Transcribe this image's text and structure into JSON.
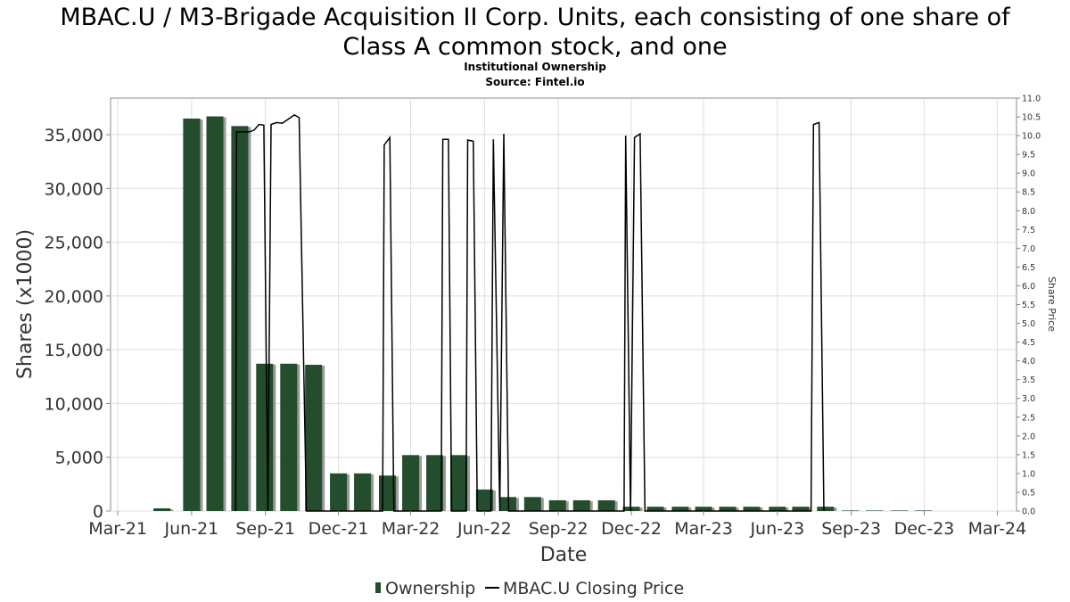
{
  "title_line1": "MBAC.U / M3-Brigade Acquisition II Corp. Units, each consisting of one share of",
  "title_line2": "Class A common stock, and one",
  "subtitle": "Institutional Ownership",
  "source": "Source: Fintel.io",
  "chart_data": {
    "type": "bar",
    "xlabel": "Date",
    "ylabel": "Shares (x1000)",
    "y2label": "Share Price",
    "ylim": [
      0,
      38400
    ],
    "y2lim": [
      0,
      11.0
    ],
    "yticks": [
      "0",
      "5,000",
      "10,000",
      "15,000",
      "20,000",
      "25,000",
      "30,000",
      "35,000"
    ],
    "y2ticks": [
      "0.0",
      "0.5",
      "1.0",
      "1.5",
      "2.0",
      "2.5",
      "3.0",
      "3.5",
      "4.0",
      "4.5",
      "5.0",
      "5.5",
      "6.0",
      "6.5",
      "7.0",
      "7.5",
      "8.0",
      "8.5",
      "9.0",
      "9.5",
      "10.0",
      "10.5",
      "11.0"
    ],
    "xticks": [
      "Mar-21",
      "Jun-21",
      "Sep-21",
      "Dec-21",
      "Mar-22",
      "Jun-22",
      "Sep-22",
      "Dec-22",
      "Mar-23",
      "Jun-23",
      "Sep-23",
      "Dec-23",
      "Mar-24"
    ],
    "xrange": [
      "2021-02-20",
      "2024-03-25"
    ],
    "grid": true,
    "legend_position": "bottom",
    "colors": {
      "bar": "#234d2c",
      "bar_shadow": "#9a9a9a",
      "line": "#000000",
      "grid": "#dddddd"
    },
    "series": [
      {
        "name": "Ownership",
        "kind": "bar",
        "points": [
          {
            "x": "2021-04-25",
            "y": 250
          },
          {
            "x": "2021-06-01",
            "y": 36500
          },
          {
            "x": "2021-06-30",
            "y": 36700
          },
          {
            "x": "2021-07-31",
            "y": 35800
          },
          {
            "x": "2021-08-31",
            "y": 13700
          },
          {
            "x": "2021-09-30",
            "y": 13700
          },
          {
            "x": "2021-10-31",
            "y": 13600
          },
          {
            "x": "2021-12-01",
            "y": 3500
          },
          {
            "x": "2021-12-31",
            "y": 3500
          },
          {
            "x": "2022-01-31",
            "y": 3300
          },
          {
            "x": "2022-03-01",
            "y": 5200
          },
          {
            "x": "2022-03-31",
            "y": 5200
          },
          {
            "x": "2022-04-30",
            "y": 5200
          },
          {
            "x": "2022-06-01",
            "y": 2000
          },
          {
            "x": "2022-06-30",
            "y": 1300
          },
          {
            "x": "2022-07-31",
            "y": 1300
          },
          {
            "x": "2022-08-31",
            "y": 1000
          },
          {
            "x": "2022-09-30",
            "y": 1000
          },
          {
            "x": "2022-10-31",
            "y": 1000
          },
          {
            "x": "2022-12-01",
            "y": 400
          },
          {
            "x": "2022-12-31",
            "y": 400
          },
          {
            "x": "2023-01-31",
            "y": 400
          },
          {
            "x": "2023-03-01",
            "y": 400
          },
          {
            "x": "2023-03-31",
            "y": 400
          },
          {
            "x": "2023-04-30",
            "y": 400
          },
          {
            "x": "2023-06-01",
            "y": 400
          },
          {
            "x": "2023-06-30",
            "y": 400
          },
          {
            "x": "2023-07-31",
            "y": 400
          },
          {
            "x": "2023-08-31",
            "y": 50
          },
          {
            "x": "2023-09-30",
            "y": 50
          },
          {
            "x": "2023-10-31",
            "y": 50
          },
          {
            "x": "2023-11-30",
            "y": 50
          }
        ]
      },
      {
        "name": "MBAC.U Closing Price",
        "kind": "line",
        "axis": "right",
        "points": [
          {
            "x": "2021-07-26",
            "y": 0.0
          },
          {
            "x": "2021-07-27",
            "y": 10.1
          },
          {
            "x": "2021-08-12",
            "y": 10.1
          },
          {
            "x": "2021-08-18",
            "y": 10.15
          },
          {
            "x": "2021-08-24",
            "y": 10.3
          },
          {
            "x": "2021-08-30",
            "y": 10.28
          },
          {
            "x": "2021-09-04",
            "y": 0.0
          },
          {
            "x": "2021-09-08",
            "y": 10.3
          },
          {
            "x": "2021-09-15",
            "y": 10.35
          },
          {
            "x": "2021-09-22",
            "y": 10.33
          },
          {
            "x": "2021-09-30",
            "y": 10.45
          },
          {
            "x": "2021-10-07",
            "y": 10.55
          },
          {
            "x": "2021-10-13",
            "y": 10.48
          },
          {
            "x": "2021-10-22",
            "y": 0.0
          },
          {
            "x": "2022-01-25",
            "y": 0.0
          },
          {
            "x": "2022-01-27",
            "y": 9.75
          },
          {
            "x": "2022-02-03",
            "y": 9.95
          },
          {
            "x": "2022-02-08",
            "y": 0.0
          },
          {
            "x": "2022-04-08",
            "y": 0.0
          },
          {
            "x": "2022-04-10",
            "y": 9.9
          },
          {
            "x": "2022-04-17",
            "y": 9.9
          },
          {
            "x": "2022-04-21",
            "y": 0.0
          },
          {
            "x": "2022-05-09",
            "y": 0.0
          },
          {
            "x": "2022-05-11",
            "y": 9.88
          },
          {
            "x": "2022-05-18",
            "y": 9.85
          },
          {
            "x": "2022-05-23",
            "y": 0.0
          },
          {
            "x": "2022-06-09",
            "y": 0.0
          },
          {
            "x": "2022-06-12",
            "y": 9.9
          },
          {
            "x": "2022-06-20",
            "y": 0.0
          },
          {
            "x": "2022-06-25",
            "y": 10.05
          },
          {
            "x": "2022-07-01",
            "y": 0.0
          },
          {
            "x": "2022-11-22",
            "y": 0.0
          },
          {
            "x": "2022-11-24",
            "y": 10.0
          },
          {
            "x": "2022-11-30",
            "y": 0.0
          },
          {
            "x": "2022-12-05",
            "y": 9.95
          },
          {
            "x": "2022-12-12",
            "y": 10.05
          },
          {
            "x": "2022-12-18",
            "y": 0.0
          },
          {
            "x": "2023-07-13",
            "y": 0.0
          },
          {
            "x": "2023-07-16",
            "y": 10.3
          },
          {
            "x": "2023-07-23",
            "y": 10.35
          },
          {
            "x": "2023-07-29",
            "y": 0.0
          }
        ]
      }
    ]
  },
  "legend": {
    "ownership": "Ownership",
    "price": "MBAC.U Closing Price"
  }
}
